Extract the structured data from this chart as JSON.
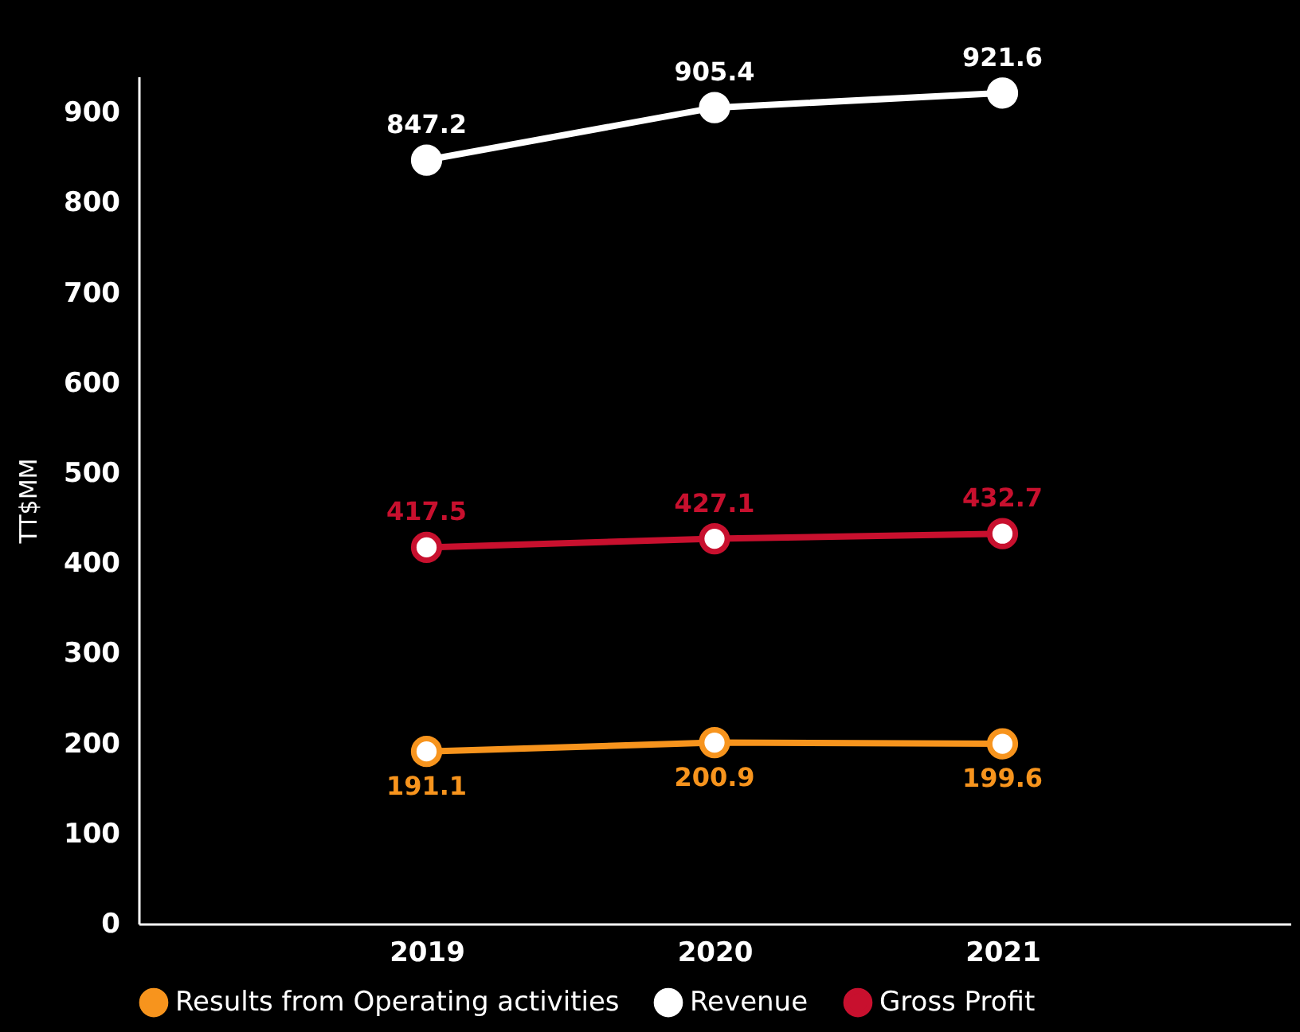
{
  "chart_data": {
    "type": "line",
    "ylabel": "TT$MM",
    "categories": [
      "2019",
      "2020",
      "2021"
    ],
    "ylim": [
      0,
      940
    ],
    "yticks": [
      0,
      100,
      200,
      300,
      400,
      500,
      600,
      700,
      800,
      900
    ],
    "grid": false,
    "legend": "bottom",
    "marker": "circle",
    "line_style": "solid",
    "data_labels": true,
    "series": [
      {
        "name": "Results from Operating activities",
        "color": "#f7941d",
        "values": [
          191.1,
          200.9,
          199.6
        ]
      },
      {
        "name": "Revenue",
        "color": "#ffffff",
        "values": [
          847.2,
          905.4,
          921.6
        ]
      },
      {
        "name": "Gross Profit",
        "color": "#c8102e",
        "values": [
          417.5,
          427.1,
          432.7
        ]
      }
    ]
  }
}
